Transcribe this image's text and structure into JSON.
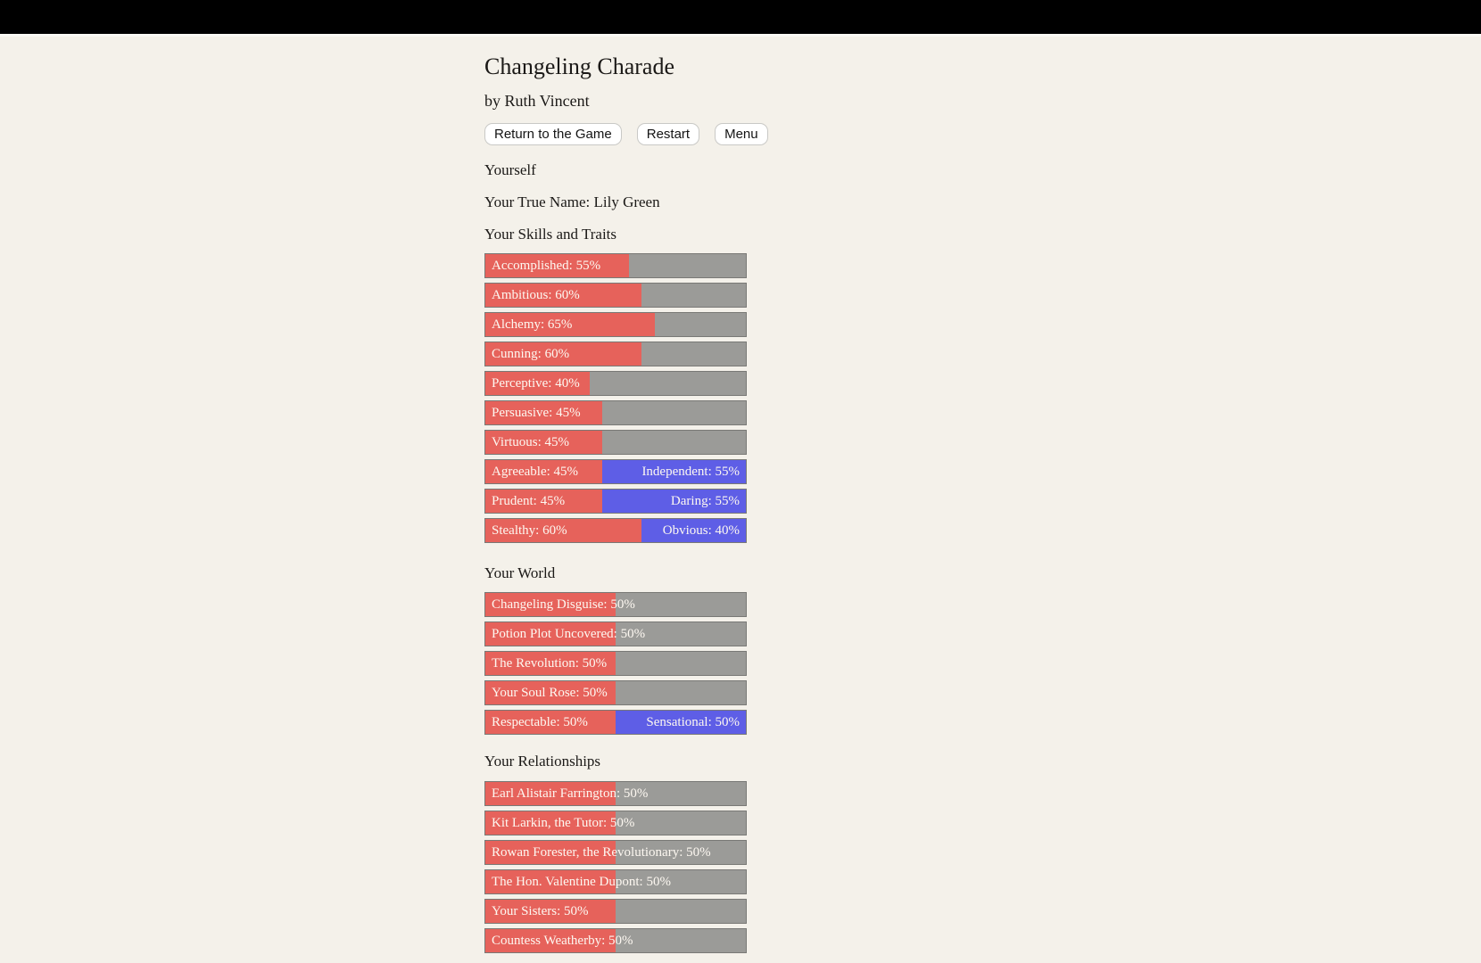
{
  "page": {
    "title": "Changeling Charade",
    "byline": "by Ruth Vincent"
  },
  "toolbar": {
    "buttons": [
      {
        "label": "Return to the Game"
      },
      {
        "label": "Restart"
      },
      {
        "label": "Menu"
      }
    ]
  },
  "sections": {
    "yourself_label": "Yourself",
    "true_name_line": "Your True Name: Lily Green",
    "skills_heading": "Your Skills and Traits",
    "world_heading": "Your World",
    "relationships_heading": "Your Relationships"
  },
  "colors": {
    "background": "#f4f1ea",
    "top_bar": "#000000",
    "bar_fill": "#e6625b",
    "bar_opposed_fill": "#5e5ee6",
    "bar_empty": "#9b9b98",
    "bar_text": "#fdf8f1"
  },
  "chart_data": [
    {
      "type": "bar",
      "name": "skills-and-traits",
      "bars": [
        {
          "kind": "single",
          "label": "Accomplished",
          "percent": 55
        },
        {
          "kind": "single",
          "label": "Ambitious",
          "percent": 60
        },
        {
          "kind": "single",
          "label": "Alchemy",
          "percent": 65
        },
        {
          "kind": "single",
          "label": "Cunning",
          "percent": 60
        },
        {
          "kind": "single",
          "label": "Perceptive",
          "percent": 40
        },
        {
          "kind": "single",
          "label": "Persuasive",
          "percent": 45
        },
        {
          "kind": "single",
          "label": "Virtuous",
          "percent": 45
        },
        {
          "kind": "opposed",
          "left_label": "Agreeable",
          "left_percent": 45,
          "right_label": "Independent",
          "right_percent": 55
        },
        {
          "kind": "opposed",
          "left_label": "Prudent",
          "left_percent": 45,
          "right_label": "Daring",
          "right_percent": 55
        },
        {
          "kind": "opposed",
          "left_label": "Stealthy",
          "left_percent": 60,
          "right_label": "Obvious",
          "right_percent": 40
        }
      ]
    },
    {
      "type": "bar",
      "name": "world",
      "bars": [
        {
          "kind": "single",
          "label": "Changeling Disguise",
          "percent": 50
        },
        {
          "kind": "single",
          "label": "Potion Plot Uncovered",
          "percent": 50
        },
        {
          "kind": "single",
          "label": "The Revolution",
          "percent": 50
        },
        {
          "kind": "single",
          "label": "Your Soul Rose",
          "percent": 50
        },
        {
          "kind": "opposed",
          "left_label": "Respectable",
          "left_percent": 50,
          "right_label": "Sensational",
          "right_percent": 50
        }
      ]
    },
    {
      "type": "bar",
      "name": "relationships",
      "bars": [
        {
          "kind": "single",
          "label": "Earl Alistair Farrington",
          "percent": 50
        },
        {
          "kind": "single",
          "label": "Kit Larkin, the Tutor",
          "percent": 50
        },
        {
          "kind": "single",
          "label": "Rowan Forester, the Revolutionary",
          "percent": 50
        },
        {
          "kind": "single",
          "label": "The Hon. Valentine Dupont",
          "percent": 50
        },
        {
          "kind": "single",
          "label": "Your Sisters",
          "percent": 50
        },
        {
          "kind": "single",
          "label": "Countess Weatherby",
          "percent": 50
        }
      ]
    }
  ]
}
